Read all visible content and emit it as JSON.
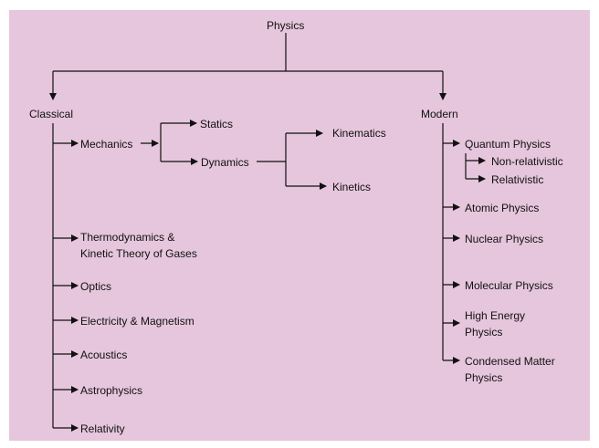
{
  "diagram": {
    "root": "Physics",
    "classical": {
      "label": "Classical",
      "items": [
        "Mechanics",
        "Thermodynamics &\nKinetic Theory of Gases",
        "Optics",
        "Electricity & Magnetism",
        "Acoustics",
        "Astrophysics",
        "Relativity"
      ],
      "mechanics_children": [
        "Statics",
        "Dynamics"
      ],
      "dynamics_children": [
        "Kinematics",
        "Kinetics"
      ]
    },
    "modern": {
      "label": "Modern",
      "items": [
        "Quantum Physics",
        "Atomic Physics",
        "Nuclear Physics",
        "Molecular Physics",
        "High Energy\nPhysics",
        "Condensed Matter\nPhysics"
      ],
      "quantum_children": [
        "Non-relativistic",
        "Relativistic"
      ]
    },
    "colors": {
      "background": "#e6c6dc",
      "line": "#111111"
    }
  }
}
